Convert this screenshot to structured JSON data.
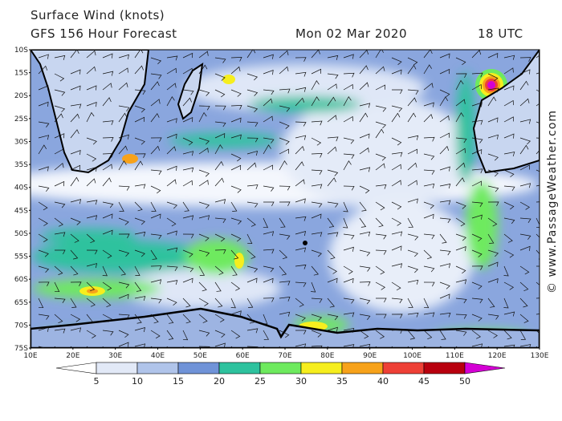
{
  "header": {
    "title": "Surface Wind (knots)",
    "subtitle": "GFS 156 Hour Forecast",
    "date": "Mon 02 Mar 2020",
    "time": "18 UTC"
  },
  "credit": "© www.PassageWeather.com",
  "lat_labels": [
    "10S",
    "15S",
    "20S",
    "25S",
    "30S",
    "35S",
    "40S",
    "45S",
    "50S",
    "55S",
    "60S",
    "65S",
    "70S",
    "75S"
  ],
  "lon_labels": [
    "10E",
    "20E",
    "30E",
    "40E",
    "50E",
    "60E",
    "70E",
    "80E",
    "90E",
    "100E",
    "110E",
    "120E",
    "130E"
  ],
  "colorbar": {
    "ticks": [
      5,
      10,
      15,
      20,
      25,
      30,
      35,
      40,
      45,
      50
    ],
    "colors": [
      "#ffffff",
      "#e2e9f7",
      "#b0c4ea",
      "#7093d8",
      "#2ec29e",
      "#6eea5e",
      "#f6ee1e",
      "#f7a21a",
      "#ee4036",
      "#b8000e",
      "#d400d4"
    ]
  }
}
